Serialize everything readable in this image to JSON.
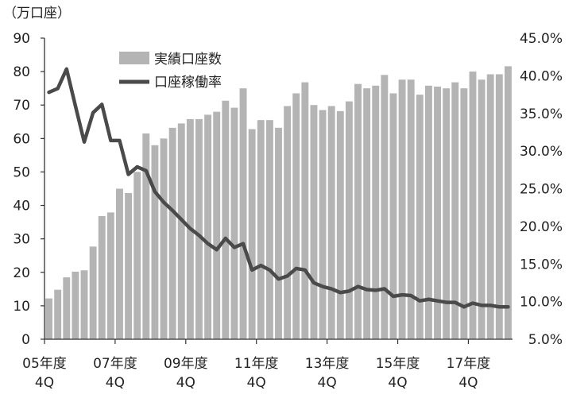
{
  "chart_data": {
    "type": "bar",
    "unit_left": "（万口座）",
    "legend": {
      "bar_label": "実績口座数",
      "line_label": "口座稼働率",
      "placement": "top-left"
    },
    "colors": {
      "bar": "#b4b4b4",
      "line": "#4a4a4a",
      "axis": "#333333"
    },
    "y_left": {
      "min": 0,
      "max": 90,
      "ticks": [
        "0",
        "10",
        "20",
        "30",
        "40",
        "50",
        "60",
        "70",
        "80",
        "90"
      ]
    },
    "y_right": {
      "min": 5.0,
      "max": 45.0,
      "ticks": [
        "5.0%",
        "10.0%",
        "15.0%",
        "20.0%",
        "25.0%",
        "30.0%",
        "35.0%",
        "40.0%",
        "45.0%"
      ]
    },
    "x_labels": [
      {
        "index": 0,
        "line1": "05年度",
        "line2": "4Q"
      },
      {
        "index": 8,
        "line1": "07年度",
        "line2": "4Q"
      },
      {
        "index": 16,
        "line1": "09年度",
        "line2": "4Q"
      },
      {
        "index": 24,
        "line1": "11年度",
        "line2": "4Q"
      },
      {
        "index": 32,
        "line1": "13年度",
        "line2": "4Q"
      },
      {
        "index": 40,
        "line1": "15年度",
        "line2": "4Q"
      },
      {
        "index": 48,
        "line1": "17年度",
        "line2": "4Q"
      }
    ],
    "series": [
      {
        "name": "実績口座数",
        "type": "bar",
        "axis": "left",
        "values": [
          12.2,
          14.8,
          18.5,
          20.2,
          20.6,
          27.7,
          36.8,
          37.9,
          45.0,
          43.7,
          50.0,
          61.5,
          58.0,
          60.0,
          63.2,
          64.5,
          65.8,
          65.8,
          67.1,
          68.0,
          71.3,
          69.2,
          75.0,
          62.8,
          65.5,
          65.5,
          63.2,
          69.7,
          73.5,
          76.8,
          70.0,
          68.5,
          69.7,
          68.2,
          71.1,
          76.3,
          75.0,
          75.8,
          79.0,
          73.5,
          77.6,
          77.6,
          73.1,
          75.8,
          75.5,
          75.0,
          76.8,
          75.0,
          80.0,
          77.6,
          79.2,
          79.2,
          81.6
        ]
      },
      {
        "name": "口座稼働率",
        "type": "line",
        "axis": "right",
        "values": [
          37.8,
          38.3,
          40.9,
          36.0,
          31.2,
          35.1,
          36.2,
          31.4,
          31.4,
          26.9,
          27.9,
          27.4,
          24.6,
          23.2,
          22.1,
          20.9,
          19.7,
          18.8,
          17.7,
          16.9,
          18.4,
          17.2,
          17.7,
          14.2,
          14.8,
          14.2,
          13.0,
          13.4,
          14.4,
          14.2,
          12.5,
          12.0,
          11.7,
          11.2,
          11.4,
          12.0,
          11.6,
          11.5,
          11.7,
          10.7,
          10.9,
          10.8,
          10.1,
          10.3,
          10.1,
          9.9,
          9.9,
          9.3,
          9.8,
          9.5,
          9.5,
          9.3,
          9.3
        ]
      }
    ]
  }
}
